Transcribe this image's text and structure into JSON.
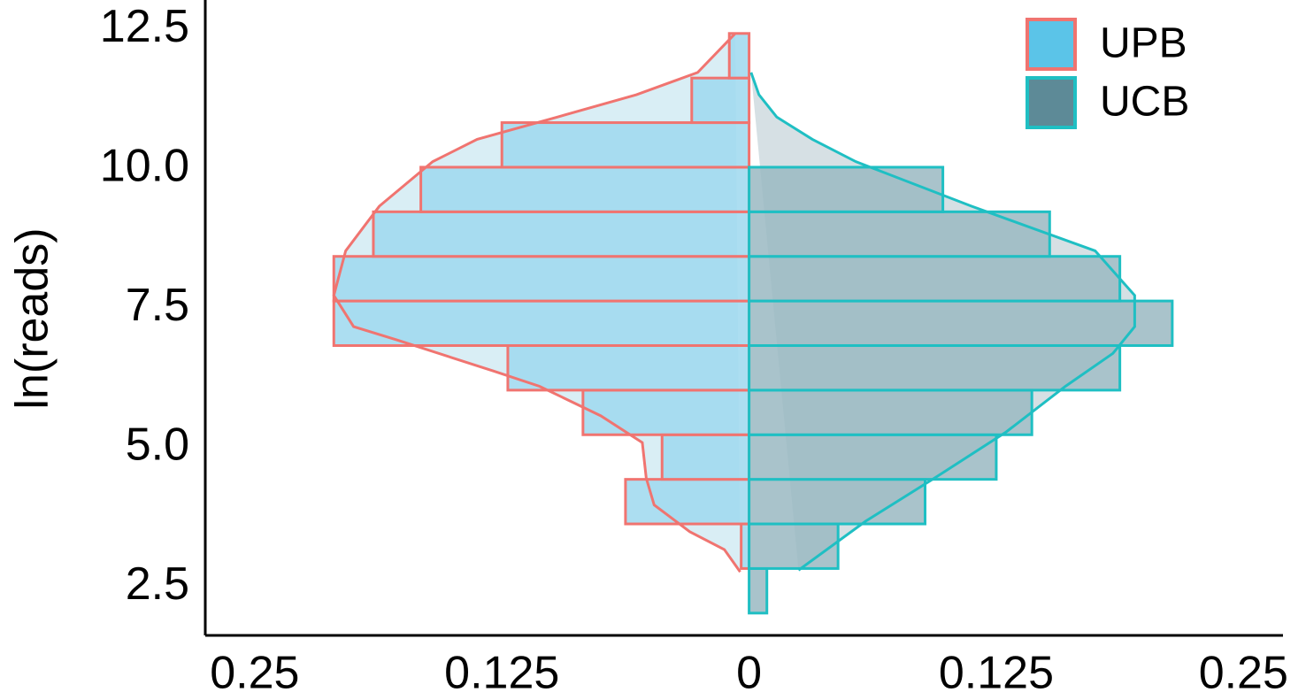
{
  "chart_data": {
    "type": "histogram",
    "y_label": "ln(reads)",
    "bins": [
      2.0,
      2.8,
      3.6,
      4.4,
      5.2,
      6.0,
      6.8,
      7.6,
      8.4,
      9.2,
      10.0,
      10.8,
      11.6,
      12.4
    ],
    "series": [
      {
        "name": "UPB",
        "side": "left",
        "color": "#9dd8ee",
        "edge_color": "#f07470",
        "legend_color": "#5bc4e8",
        "area_color": "#d9eef5",
        "values": [
          0,
          0.004,
          0.0625,
          0.044,
          0.084,
          0.122,
          0.21,
          0.21,
          0.19,
          0.166,
          0.125,
          0.029,
          0.01
        ],
        "density": {
          "y": [
            12.4,
            11.7,
            11.3,
            10.9,
            10.5,
            10.1,
            9.3,
            8.5,
            7.7,
            7.14,
            6.9,
            6.34,
            6.07,
            5.54,
            5.06,
            4.42,
            3.94,
            3.46,
            3.14,
            2.74
          ],
          "values": [
            0.007,
            0.026,
            0.057,
            0.097,
            0.1375,
            0.16,
            0.187,
            0.204,
            0.21,
            0.2,
            0.178,
            0.129,
            0.106,
            0.075,
            0.054,
            0.052,
            0.048,
            0.03,
            0.0125,
            0.0045
          ]
        }
      },
      {
        "name": "UCB",
        "side": "right",
        "color": "#9ab8c2",
        "edge_color": "#1fbfc3",
        "legend_color": "#5d8a97",
        "area_color": "#d6e0e4",
        "values": [
          0.009,
          0.045,
          0.089,
          0.125,
          0.143,
          0.1875,
          0.214,
          0.1875,
          0.152,
          0.098,
          0,
          0,
          0
        ],
        "density": {
          "y": [
            11.7,
            11.3,
            10.9,
            10.5,
            10.1,
            9.3,
            8.5,
            7.7,
            7.14,
            6.66,
            6.07,
            5.25,
            4.45,
            3.65,
            2.77
          ],
          "values": [
            0.001,
            0.005,
            0.014,
            0.032,
            0.054,
            0.1125,
            0.175,
            0.195,
            0.195,
            0.184,
            0.16,
            0.13,
            0.095,
            0.059,
            0.025
          ]
        }
      }
    ],
    "xlim": [
      -0.275,
      0.27
    ],
    "xticks": [
      {
        "value": -0.25,
        "label": "0.25"
      },
      {
        "value": -0.125,
        "label": "0.125"
      },
      0,
      0.125,
      0.25
    ],
    "ylim": [
      1.6,
      13.0
    ],
    "yticks": [
      {
        "value": 2.5,
        "label": "2.5"
      },
      {
        "value": 5.0,
        "label": "5.0"
      },
      {
        "value": 7.5,
        "label": "7.5"
      },
      {
        "value": 10.0,
        "label": "10.0"
      },
      {
        "value": 12.5,
        "label": "12.5"
      }
    ],
    "legend": "top-right",
    "grid": false
  }
}
